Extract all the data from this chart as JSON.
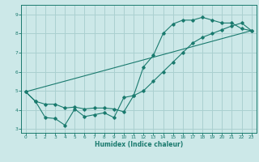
{
  "xlabel": "Humidex (Indice chaleur)",
  "bg_color": "#cce8e8",
  "grid_color": "#aad0d0",
  "line_color": "#1a7a6e",
  "xlim": [
    -0.5,
    23.5
  ],
  "ylim": [
    2.8,
    9.5
  ],
  "xticks": [
    0,
    1,
    2,
    3,
    4,
    5,
    6,
    7,
    8,
    9,
    10,
    11,
    12,
    13,
    14,
    15,
    16,
    17,
    18,
    19,
    20,
    21,
    22,
    23
  ],
  "yticks": [
    3,
    4,
    5,
    6,
    7,
    8,
    9
  ],
  "line1_x": [
    0,
    1,
    2,
    3,
    4,
    5,
    6,
    7,
    8,
    9,
    10,
    11,
    12,
    13,
    14,
    15,
    16,
    17,
    18,
    19,
    20,
    21,
    22,
    23
  ],
  "line1_y": [
    4.95,
    4.45,
    3.6,
    3.55,
    3.2,
    4.05,
    3.65,
    3.75,
    3.85,
    3.6,
    4.65,
    4.75,
    6.25,
    6.85,
    8.0,
    8.5,
    8.7,
    8.7,
    8.85,
    8.7,
    8.55,
    8.55,
    8.25,
    8.15
  ],
  "line2_x": [
    0,
    23
  ],
  "line2_y": [
    4.95,
    8.15
  ],
  "line3_x": [
    0,
    1,
    2,
    3,
    4,
    5,
    6,
    7,
    8,
    9,
    10,
    11,
    12,
    13,
    14,
    15,
    16,
    17,
    18,
    19,
    20,
    21,
    22,
    23
  ],
  "line3_y": [
    4.95,
    4.45,
    4.3,
    4.3,
    4.1,
    4.15,
    4.05,
    4.1,
    4.1,
    4.05,
    3.9,
    4.75,
    5.0,
    5.5,
    6.0,
    6.5,
    7.0,
    7.5,
    7.8,
    8.0,
    8.2,
    8.4,
    8.55,
    8.15
  ]
}
